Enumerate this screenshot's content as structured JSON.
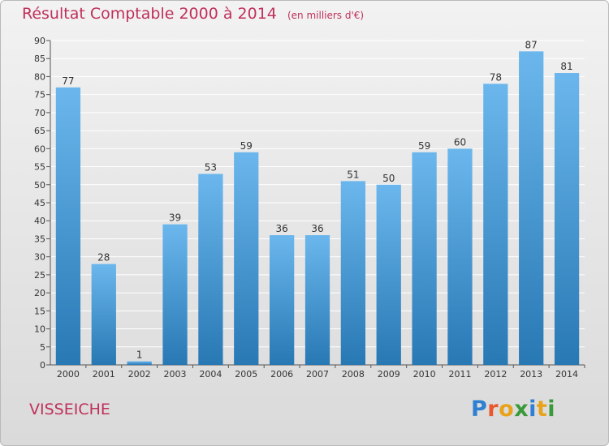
{
  "title_main": "Résultat Comptable 2000 à 2014",
  "title_unit": "(en milliers d'€)",
  "commune": "VISSEICHE",
  "logo_letters": [
    "P",
    "r",
    "o",
    "x",
    "i",
    "t",
    "i"
  ],
  "logo_colors": [
    "#2f7fd2",
    "#e9572b",
    "#e8a21b",
    "#3a9a3a",
    "#2f7fd2",
    "#e8a21b",
    "#3a9a3a"
  ],
  "colors": {
    "bar_light": "#6bb7ed",
    "bar_dark": "#2878b4",
    "grid": "#ffffff",
    "title": "#c0305a"
  },
  "chart_data": {
    "type": "bar",
    "categories": [
      "2000",
      "2001",
      "2002",
      "2003",
      "2004",
      "2005",
      "2006",
      "2007",
      "2008",
      "2009",
      "2010",
      "2011",
      "2012",
      "2013",
      "2014"
    ],
    "values": [
      77,
      28,
      1,
      39,
      53,
      59,
      36,
      36,
      51,
      50,
      59,
      60,
      78,
      87,
      81
    ],
    "ylim": [
      0,
      90
    ],
    "ytick_step": 5,
    "grid": true,
    "title": "Résultat Comptable 2000 à 2014",
    "xlabel": "",
    "ylabel": ""
  }
}
